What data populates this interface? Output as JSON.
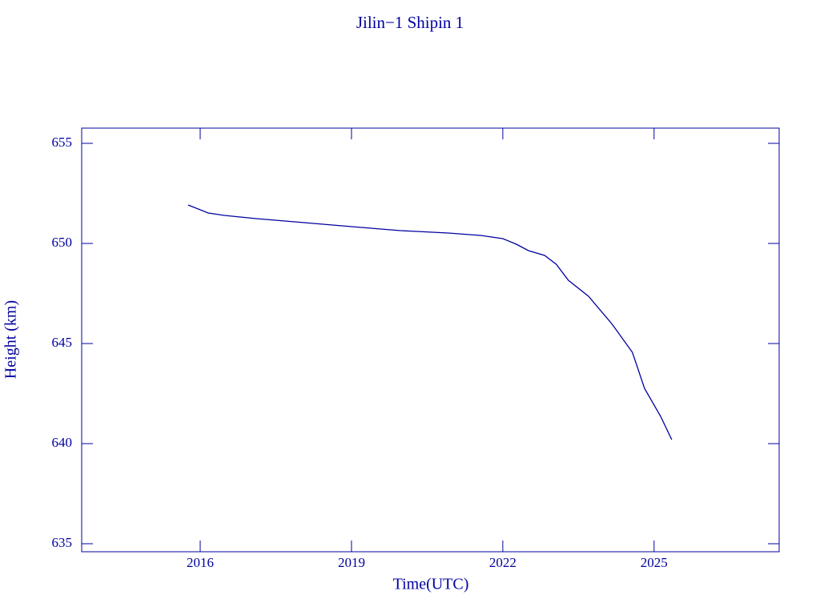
{
  "chart_data": {
    "type": "line",
    "title": "Jilin−1 Shipin 1",
    "x_label": "Time(UTC)",
    "y_label": "Height (km)",
    "x": [
      2015.76,
      2016.16,
      2016.48,
      2017.11,
      2018.06,
      2019.0,
      2019.97,
      2020.92,
      2021.56,
      2022.0,
      2022.27,
      2022.51,
      2022.83,
      2023.06,
      2023.3,
      2023.7,
      2024.17,
      2024.57,
      2024.81,
      2025.13,
      2025.35
    ],
    "series": [
      {
        "name": "Height",
        "color": "#0000a0",
        "values": [
          651.92,
          651.52,
          651.4,
          651.24,
          651.04,
          650.84,
          650.64,
          650.52,
          650.4,
          650.24,
          649.96,
          649.64,
          649.4,
          648.96,
          648.16,
          647.36,
          645.96,
          644.56,
          642.76,
          641.36,
          640.2
        ]
      }
    ],
    "xlim": [
      2013.65,
      2027.48
    ],
    "xticks": [
      2016,
      2019,
      2022,
      2025
    ],
    "ylim": [
      634.6,
      655.76
    ],
    "yticks": [
      635,
      640,
      645,
      650,
      655
    ]
  }
}
